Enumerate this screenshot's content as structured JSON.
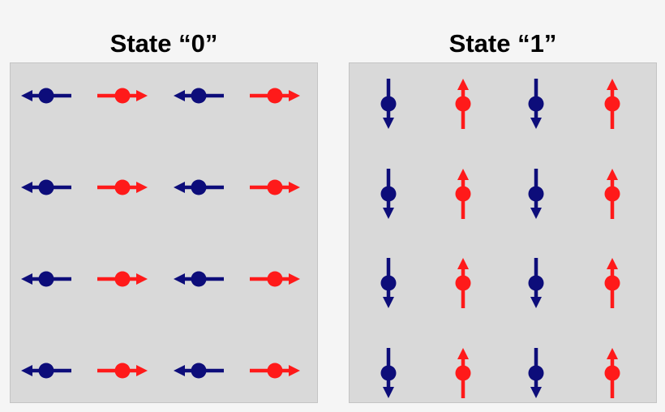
{
  "states": [
    {
      "title": "State “0”",
      "orientation": "horizontal",
      "grid": [
        [
          "left",
          "right",
          "left",
          "right"
        ],
        [
          "left",
          "right",
          "left",
          "right"
        ],
        [
          "left",
          "right",
          "left",
          "right"
        ],
        [
          "left",
          "right",
          "left",
          "right"
        ]
      ]
    },
    {
      "title": "State “1”",
      "orientation": "vertical",
      "grid": [
        [
          "down",
          "up",
          "down",
          "up"
        ],
        [
          "down",
          "up",
          "down",
          "up"
        ],
        [
          "down",
          "up",
          "down",
          "up"
        ],
        [
          "down",
          "up",
          "down",
          "up"
        ]
      ]
    }
  ],
  "colors": {
    "spin_left": "#0d0d7a",
    "spin_right": "#ff1a1a",
    "spin_down": "#0d0d7a",
    "spin_up": "#ff1a1a",
    "panel_bg": "#d9d9d9",
    "page_bg": "#f5f5f5"
  }
}
